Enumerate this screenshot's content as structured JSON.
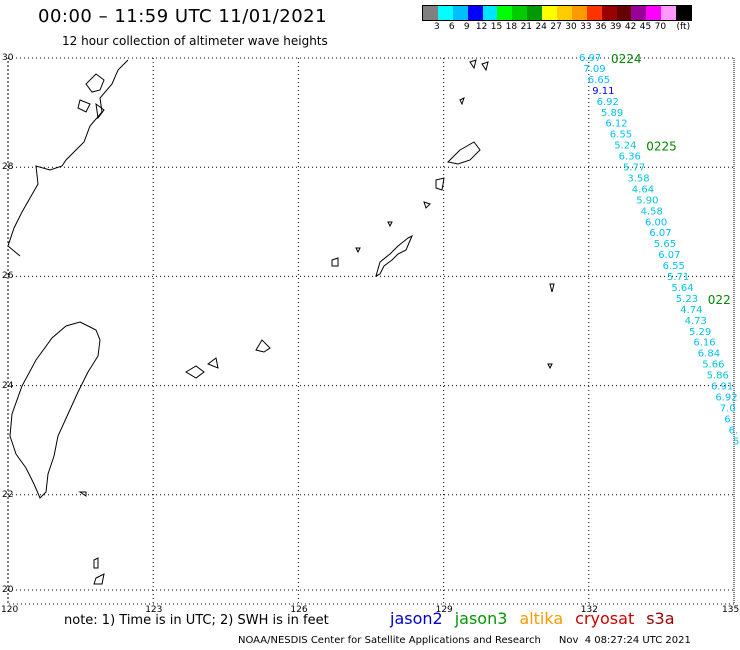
{
  "header": {
    "title": "00:00 – 11:59 UTC 11/01/2021",
    "subtitle": "12 hour collection of altimeter wave heights"
  },
  "colorbar": {
    "colors": [
      "#808080",
      "#00ffff",
      "#00bfff",
      "#0000ff",
      "#00e5ff",
      "#00ff00",
      "#00cc00",
      "#009900",
      "#ffff00",
      "#ffcc00",
      "#ff9900",
      "#ff3300",
      "#990000",
      "#660000",
      "#990099",
      "#ff00ff",
      "#ff99ff",
      "#000000"
    ],
    "labels": [
      "3",
      "6",
      "9",
      "12",
      "15",
      "18",
      "21",
      "24",
      "27",
      "30",
      "33",
      "36",
      "39",
      "42",
      "45",
      "70",
      "(ft)"
    ]
  },
  "axes": {
    "lon_ticks": [
      "120",
      "123",
      "126",
      "129",
      "132",
      "135"
    ],
    "lat_ticks": [
      "30",
      "28",
      "26",
      "24",
      "22",
      "20"
    ]
  },
  "track": {
    "pass_labels": [
      "0224",
      "0225",
      "022"
    ],
    "values": [
      "6.97",
      "7.09",
      "6.65",
      "9.11",
      "6.92",
      "5.89",
      "6.12",
      "6.55",
      "5.24",
      "6.36",
      "5.77",
      "3.58",
      "4.64",
      "5.90",
      "4.58",
      "6.00",
      "6.07",
      "5.65",
      "6.07",
      "6.55",
      "5.71",
      "5.64",
      "5.23",
      "4.74",
      "4.73",
      "5.29",
      "6.16",
      "6.84",
      "5.66",
      "5.86",
      "6.91",
      "6.92",
      "7.0",
      "6.",
      "6.",
      "5"
    ]
  },
  "notes": {
    "note": "note: 1) Time is in UTC; 2) SWH is in feet",
    "satellites": [
      {
        "name": "jason2",
        "color": "#0000cc"
      },
      {
        "name": "jason3",
        "color": "#009900"
      },
      {
        "name": "altika",
        "color": "#ff9900"
      },
      {
        "name": "cryosat",
        "color": "#cc0000"
      },
      {
        "name": "s3a",
        "color": "#990000"
      }
    ],
    "footer_center": "NOAA/NESDIS Center for Satellite Applications and Research",
    "footer_date": "Nov  4 08:27:24 UTC 2021"
  }
}
